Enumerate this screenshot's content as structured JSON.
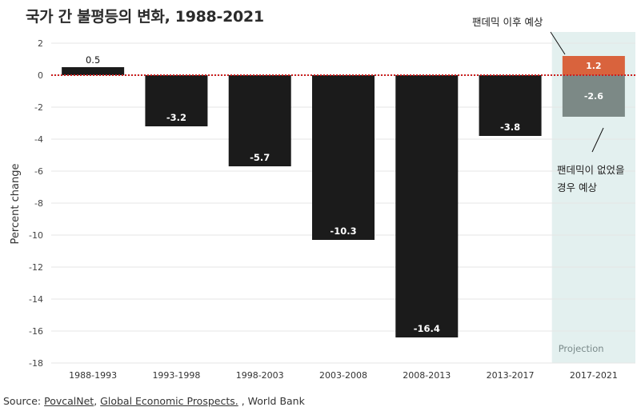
{
  "title": "국가 간 불평등의 변화, 1988-2021",
  "source": {
    "prefix": "Source: ",
    "link1": "PovcalNet",
    "sep": ", ",
    "link2": "Global Economic Prospects.",
    "suffix": " ,  World Bank"
  },
  "annotations": {
    "with_pandemic": "팬데믹 이후 예상",
    "without_pandemic_line1": "팬데믹이 없었을",
    "without_pandemic_line2": "경우 예상"
  },
  "chart_data": {
    "type": "bar",
    "ylabel": "Percent change",
    "ylim": [
      -18,
      2
    ],
    "yticks": [
      2,
      0,
      -2,
      -4,
      -6,
      -8,
      -10,
      -12,
      -14,
      -16,
      -18
    ],
    "grid": true,
    "categories": [
      "1988-1993",
      "1993-1998",
      "1998-2003",
      "2003-2008",
      "2008-2013",
      "2013-2017",
      "2017-2021"
    ],
    "values": [
      0.5,
      -3.2,
      -5.7,
      -10.3,
      -16.4,
      -3.8,
      null
    ],
    "labels": [
      "0.5",
      "-3.2",
      "-5.7",
      "-10.3",
      "-16.4",
      "-3.8",
      null
    ],
    "projection": {
      "label": "Projection",
      "category": "2017-2021",
      "with_pandemic": 1.2,
      "with_pandemic_label": "1.2",
      "without_pandemic": -2.6,
      "without_pandemic_label": "-2.6"
    },
    "colors": {
      "bar": "#1b1b1b",
      "projection_with_pandemic": "#d9633d",
      "projection_without_pandemic": "#7c8986",
      "projection_band": "#e3f0ef",
      "zero_line": "#cc1f1f",
      "grid": "#e6e6e6"
    }
  }
}
